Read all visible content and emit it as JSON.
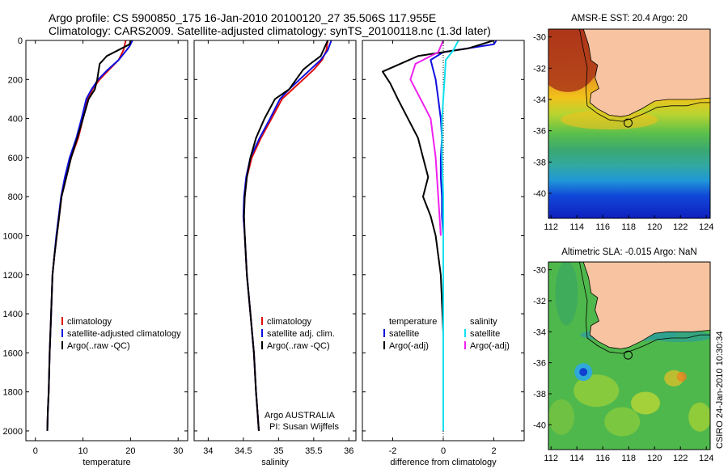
{
  "header": {
    "line1": "Argo profile: CS 5900850_175 16-Jan-2010 20100120_27 35.506S 117.955E",
    "line2": "Climatology: CARS2009. Satellite-adjusted climatology: synTS_20100118.nc (1.3d later)"
  },
  "maps": [
    {
      "title": "AMSR-E SST: 20.4 Argo: 20"
    },
    {
      "title": "Altimetric SLA: -0.015 Argo: NaN"
    }
  ],
  "stamp": "CSIRO 24-Jan-2010 10:30:34",
  "colors": {
    "climatology": "#e01010",
    "satellite": "#1010e0",
    "argo": "#000000",
    "sal_satellite": "#10e0f0",
    "sal_argo": "#f020f0",
    "land": "#f7c3a0"
  },
  "chart_data": [
    {
      "type": "line",
      "panel": "temperature",
      "xlabel": "temperature",
      "ylabel": "",
      "xlim": [
        -2,
        32
      ],
      "ylim": [
        2050,
        0
      ],
      "xticks": [
        0,
        10,
        20,
        30
      ],
      "yticks": [
        0,
        200,
        400,
        600,
        800,
        1000,
        1200,
        1400,
        1600,
        1800,
        2000
      ],
      "legend": [
        "climatology",
        "satellite-adjusted climatology",
        "Argo(..raw -QC)"
      ],
      "series": [
        {
          "name": "climatology",
          "color": "#e01010",
          "x": [
            19,
            18.5,
            17.5,
            15.5,
            13.5,
            12,
            11,
            10,
            9,
            7.5,
            6.5,
            5.5,
            5,
            4.5,
            4,
            3.6,
            3.3,
            3,
            2.8,
            2.6,
            2.5
          ],
          "y": [
            0,
            50,
            100,
            150,
            200,
            250,
            300,
            400,
            500,
            600,
            700,
            800,
            900,
            1000,
            1100,
            1200,
            1400,
            1600,
            1800,
            1900,
            2000
          ]
        },
        {
          "name": "satellite-adjusted climatology",
          "color": "#1010e0",
          "x": [
            20.4,
            19.8,
            17.5,
            15.2,
            13.2,
            11.8,
            10.7,
            9.7,
            8.6,
            7.2,
            6.2,
            5.4,
            4.9,
            4.4,
            4,
            3.6,
            3.3,
            3,
            2.8,
            2.6,
            2.5
          ],
          "y": [
            0,
            30,
            100,
            150,
            200,
            250,
            300,
            400,
            500,
            600,
            700,
            800,
            900,
            1000,
            1100,
            1200,
            1400,
            1600,
            1800,
            1900,
            2000
          ]
        },
        {
          "name": "Argo(..raw -QC)",
          "color": "#000000",
          "x": [
            20,
            19.8,
            15,
            13.5,
            13,
            12.5,
            11.2,
            10,
            8.8,
            7.5,
            6.5,
            5.5,
            5,
            4.5,
            4,
            3.6,
            3.3,
            3,
            2.8,
            2.6,
            2.5
          ],
          "y": [
            0,
            20,
            80,
            120,
            200,
            250,
            300,
            400,
            500,
            600,
            700,
            800,
            900,
            1000,
            1100,
            1200,
            1400,
            1600,
            1800,
            1900,
            2000
          ]
        }
      ]
    },
    {
      "type": "line",
      "panel": "salinity",
      "xlabel": "salinity",
      "ylabel": "",
      "xlim": [
        33.8,
        36.1
      ],
      "ylim": [
        2050,
        0
      ],
      "xticks": [
        34,
        34.5,
        35,
        35.5,
        36
      ],
      "legend": [
        "climatology",
        "satellite adj. clim.",
        "Argo(..raw -QC)"
      ],
      "annotation": [
        "Argo AUSTRALIA",
        "PI: Susan Wijffels"
      ],
      "series": [
        {
          "name": "climatology",
          "color": "#e01010",
          "x": [
            35.7,
            35.68,
            35.62,
            35.5,
            35.35,
            35.2,
            35.05,
            34.9,
            34.75,
            34.62,
            34.55,
            34.52,
            34.5,
            34.52,
            34.55,
            34.6,
            34.65,
            34.68,
            34.7,
            34.72
          ],
          "y": [
            0,
            50,
            100,
            150,
            200,
            250,
            300,
            400,
            500,
            600,
            700,
            800,
            900,
            1000,
            1200,
            1400,
            1600,
            1800,
            1900,
            2000
          ]
        },
        {
          "name": "satellite adj. clim.",
          "color": "#1010e0",
          "x": [
            35.75,
            35.7,
            35.6,
            35.45,
            35.3,
            35.15,
            35.02,
            34.88,
            34.73,
            34.6,
            34.54,
            34.51,
            34.5,
            34.52,
            34.55,
            34.6,
            34.65,
            34.68,
            34.7,
            34.72
          ],
          "y": [
            0,
            50,
            100,
            150,
            200,
            250,
            300,
            400,
            500,
            600,
            700,
            800,
            900,
            1000,
            1200,
            1400,
            1600,
            1800,
            1900,
            2000
          ]
        },
        {
          "name": "Argo(..raw -QC)",
          "color": "#000000",
          "x": [
            35.7,
            35.6,
            35.45,
            35.35,
            35.25,
            35.15,
            34.95,
            34.8,
            34.68,
            34.6,
            34.55,
            34.52,
            34.51,
            34.52,
            34.55,
            34.6,
            34.65,
            34.68,
            34.7,
            34.72
          ],
          "y": [
            0,
            80,
            120,
            150,
            200,
            250,
            300,
            400,
            500,
            600,
            700,
            800,
            900,
            1000,
            1200,
            1400,
            1600,
            1800,
            1900,
            2000
          ]
        }
      ]
    },
    {
      "type": "line",
      "panel": "difference",
      "xlabel": "difference from climatology",
      "ylabel": "",
      "xlim": [
        -3.2,
        3.2
      ],
      "ylim": [
        2050,
        0
      ],
      "xticks": [
        -2,
        0,
        2
      ],
      "legend": [
        "temperature",
        "satellite",
        "Argo(-adj)",
        "salinity",
        "satellite",
        "Argo(-adj)"
      ],
      "series": [
        {
          "name": "satellite",
          "color": "#1010e0",
          "x": [
            2.1,
            2,
            0,
            -0.5,
            -0.3,
            -0.2,
            -0.1,
            -0.05,
            -0.1,
            -0.1,
            -0.05,
            -0.05,
            0,
            0,
            0,
            0,
            0
          ],
          "y": [
            0,
            20,
            60,
            100,
            200,
            300,
            400,
            500,
            600,
            700,
            800,
            900,
            1000,
            1200,
            1500,
            1800,
            2000
          ]
        },
        {
          "name": "Argo(-adj)",
          "color": "#000000",
          "x": [
            2,
            1,
            -1,
            -2.4,
            -2.1,
            -1.8,
            -1.4,
            -1,
            -0.8,
            -0.6,
            -0.8,
            -0.5,
            -0.3,
            -0.1,
            0,
            0
          ],
          "y": [
            0,
            40,
            80,
            160,
            220,
            300,
            400,
            500,
            600,
            700,
            800,
            900,
            1000,
            1200,
            1500,
            2000
          ]
        },
        {
          "name": "satellite",
          "color": "#10e0f0",
          "x": [
            0.6,
            0.4,
            0.1,
            0.05,
            0,
            -0.05,
            -0.05,
            0,
            0,
            0,
            0,
            0
          ],
          "y": [
            0,
            50,
            100,
            200,
            300,
            400,
            600,
            800,
            1000,
            1400,
            1800,
            2000
          ]
        },
        {
          "name": "Argo(-adj)",
          "color": "#f020f0",
          "x": [
            0,
            -0.2,
            -1.1,
            -1.3,
            -0.9,
            -0.5,
            -0.4,
            -0.3,
            -0.2,
            -0.1
          ],
          "y": [
            0,
            60,
            120,
            200,
            300,
            400,
            500,
            600,
            800,
            1000
          ]
        }
      ]
    }
  ],
  "map_axes": {
    "xticks": [
      112,
      114,
      116,
      118,
      120,
      122,
      124
    ],
    "yticks": [
      -30,
      -32,
      -34,
      -36,
      -38,
      -40
    ],
    "xlim": [
      111.8,
      124.3
    ],
    "ylim": [
      -29.5,
      -41.6
    ]
  },
  "float_position": {
    "lon": 117.955,
    "lat": -35.506
  }
}
